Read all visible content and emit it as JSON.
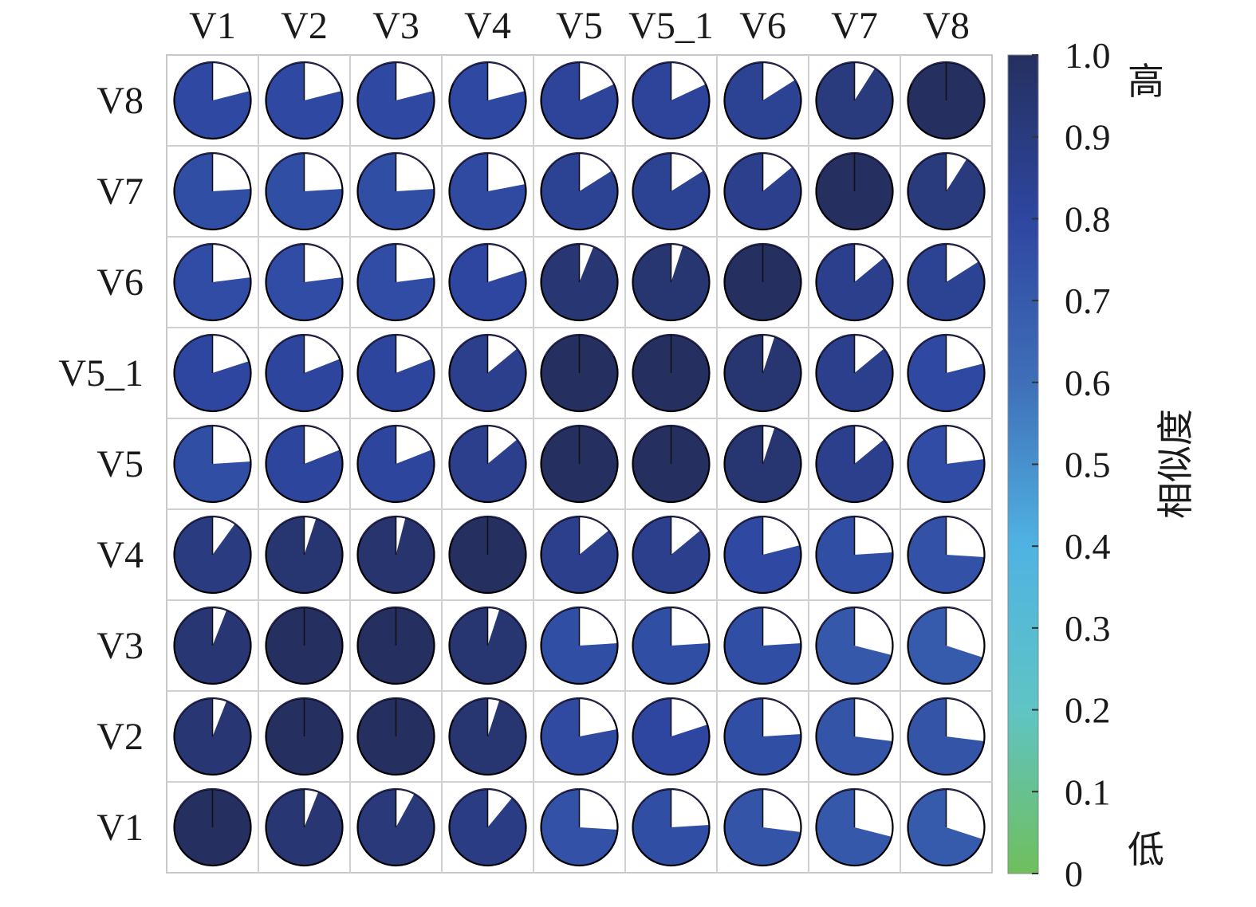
{
  "chart_data": {
    "type": "heatmap",
    "style": "pie-correlogram",
    "x_labels": [
      "V1",
      "V2",
      "V3",
      "V4",
      "V5",
      "V5_1",
      "V6",
      "V7",
      "V8"
    ],
    "y_labels_top_to_bottom": [
      "V8",
      "V7",
      "V6",
      "V5_1",
      "V5",
      "V4",
      "V3",
      "V2",
      "V1"
    ],
    "values_top_to_bottom": [
      [
        0.79,
        0.79,
        0.79,
        0.79,
        0.82,
        0.82,
        0.84,
        0.91,
        1.0
      ],
      [
        0.76,
        0.76,
        0.76,
        0.78,
        0.84,
        0.84,
        0.86,
        1.0,
        0.91
      ],
      [
        0.77,
        0.77,
        0.77,
        0.8,
        0.94,
        0.95,
        1.0,
        0.86,
        0.84
      ],
      [
        0.8,
        0.81,
        0.81,
        0.86,
        1.0,
        1.0,
        0.95,
        0.86,
        0.79
      ],
      [
        0.76,
        0.81,
        0.81,
        0.86,
        1.0,
        1.0,
        0.95,
        0.86,
        0.77
      ],
      [
        0.9,
        0.95,
        0.96,
        1.0,
        0.86,
        0.86,
        0.79,
        0.76,
        0.74
      ],
      [
        0.94,
        1.0,
        1.0,
        0.95,
        0.76,
        0.76,
        0.76,
        0.71,
        0.7
      ],
      [
        0.94,
        1.0,
        1.0,
        0.95,
        0.78,
        0.8,
        0.76,
        0.73,
        0.73
      ],
      [
        1.0,
        0.94,
        0.92,
        0.89,
        0.74,
        0.76,
        0.73,
        0.71,
        0.7
      ]
    ],
    "colorbar": {
      "min": 0,
      "max": 1,
      "ticks": [
        "0",
        "0.1",
        "0.2",
        "0.3",
        "0.4",
        "0.5",
        "0.6",
        "0.7",
        "0.8",
        "0.9",
        "1.0"
      ],
      "stops": [
        "#6fbf5c",
        "#5fc4c4",
        "#4fb3e2",
        "#3f6fb8",
        "#2e46a0",
        "#253060"
      ],
      "label": "相似度",
      "high_label": "高",
      "low_label": "低"
    }
  }
}
